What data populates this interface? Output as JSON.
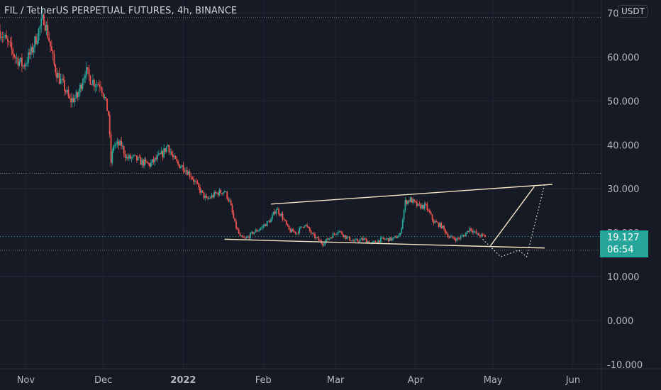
{
  "header": {
    "title": "FIL / TetherUS PERPETUAL FUTURES, 4h, BINANCE",
    "currency": "USDT"
  },
  "price_badge": {
    "price": "19.127",
    "countdown": "06:54"
  },
  "colors": {
    "background": "#161a25",
    "grid": "#222632",
    "axis_text": "#b2b5be",
    "up": "#26a69a",
    "down": "#ef5350",
    "drawing": "#f5e6c4",
    "badge": "#26a69a"
  },
  "chart_data": {
    "type": "candlestick",
    "title": "FIL / TetherUS PERPETUAL FUTURES, 4h, BINANCE",
    "y_tick_labels": [
      "70.000",
      "60.000",
      "50.000",
      "40.000",
      "30.000",
      "20.000",
      "10.000",
      "0.000",
      "-10.000"
    ],
    "y_ticks": [
      70,
      60,
      50,
      40,
      30,
      20,
      10,
      0,
      -10
    ],
    "ylim": [
      -11,
      73
    ],
    "x_tick_labels": [
      "Nov",
      "Dec",
      "2022",
      "Feb",
      "Mar",
      "Apr",
      "May",
      "Jun"
    ],
    "x_ticks": [
      "2021-11-01",
      "2021-12-01",
      "2022-01-01",
      "2022-02-01",
      "2022-03-01",
      "2022-04-01",
      "2022-05-01",
      "2022-06-01"
    ],
    "xlim": [
      "2021-10-22",
      "2022-06-12"
    ],
    "horizontal_levels": [
      69.0,
      33.5,
      19.127,
      16.0
    ],
    "last_price": 19.127,
    "close_series": {
      "name": "",
      "points": [
        [
          "2021-10-22",
          66
        ],
        [
          "2021-10-25",
          63
        ],
        [
          "2021-10-28",
          60
        ],
        [
          "2021-10-31",
          58
        ],
        [
          "2021-11-03",
          61
        ],
        [
          "2021-11-06",
          66
        ],
        [
          "2021-11-08",
          69
        ],
        [
          "2021-11-10",
          64
        ],
        [
          "2021-11-12",
          58
        ],
        [
          "2021-11-14",
          55
        ],
        [
          "2021-11-16",
          53
        ],
        [
          "2021-11-18",
          50
        ],
        [
          "2021-11-21",
          51
        ],
        [
          "2021-11-24",
          57
        ],
        [
          "2021-11-26",
          55
        ],
        [
          "2021-11-28",
          54
        ],
        [
          "2021-11-30",
          54
        ],
        [
          "2021-12-03",
          47
        ],
        [
          "2021-12-04",
          36
        ],
        [
          "2021-12-05",
          40
        ],
        [
          "2021-12-08",
          40
        ],
        [
          "2021-12-10",
          37
        ],
        [
          "2021-12-13",
          37
        ],
        [
          "2021-12-16",
          36
        ],
        [
          "2021-12-19",
          35.5
        ],
        [
          "2021-12-22",
          37
        ],
        [
          "2021-12-24",
          38
        ],
        [
          "2021-12-26",
          40
        ],
        [
          "2021-12-28",
          37
        ],
        [
          "2021-12-30",
          35.5
        ],
        [
          "2022-01-01",
          35
        ],
        [
          "2022-01-04",
          33
        ],
        [
          "2022-01-07",
          30
        ],
        [
          "2022-01-10",
          27.5
        ],
        [
          "2022-01-14",
          29
        ],
        [
          "2022-01-17",
          29.5
        ],
        [
          "2022-01-19",
          27
        ],
        [
          "2022-01-21",
          22
        ],
        [
          "2022-01-23",
          19
        ],
        [
          "2022-01-25",
          18.5
        ],
        [
          "2022-01-28",
          20
        ],
        [
          "2022-01-31",
          21
        ],
        [
          "2022-02-02",
          22
        ],
        [
          "2022-02-04",
          23
        ],
        [
          "2022-02-06",
          25.5
        ],
        [
          "2022-02-08",
          24
        ],
        [
          "2022-02-11",
          20.5
        ],
        [
          "2022-02-14",
          20
        ],
        [
          "2022-02-17",
          22
        ],
        [
          "2022-02-20",
          19.5
        ],
        [
          "2022-02-24",
          17.5
        ],
        [
          "2022-02-27",
          19
        ],
        [
          "2022-03-02",
          20.5
        ],
        [
          "2022-03-05",
          19
        ],
        [
          "2022-03-08",
          18
        ],
        [
          "2022-03-12",
          18.5
        ],
        [
          "2022-03-15",
          17.5
        ],
        [
          "2022-03-19",
          18.5
        ],
        [
          "2022-03-23",
          18.5
        ],
        [
          "2022-03-26",
          19.5
        ],
        [
          "2022-03-28",
          27
        ],
        [
          "2022-03-30",
          27.5
        ],
        [
          "2022-04-02",
          26
        ],
        [
          "2022-04-05",
          26
        ],
        [
          "2022-04-08",
          22.5
        ],
        [
          "2022-04-11",
          21.5
        ],
        [
          "2022-04-14",
          19
        ],
        [
          "2022-04-17",
          18.5
        ],
        [
          "2022-04-20",
          19.5
        ],
        [
          "2022-04-22",
          21
        ],
        [
          "2022-04-25",
          19.5
        ],
        [
          "2022-04-28",
          19.13
        ]
      ]
    },
    "annotations": [
      {
        "type": "trendline",
        "name": "upper channel line",
        "from": [
          "2022-02-04",
          26.5
        ],
        "to": [
          "2022-05-24",
          31
        ]
      },
      {
        "type": "trendline",
        "name": "lower channel line",
        "from": [
          "2022-01-17",
          18.5
        ],
        "to": [
          "2022-05-21",
          16.5
        ]
      },
      {
        "type": "trendline",
        "name": "projection solid up",
        "from": [
          "2022-04-30",
          17
        ],
        "to": [
          "2022-05-17",
          30.5
        ]
      },
      {
        "type": "dotted-path",
        "name": "projection dotted",
        "points": [
          [
            "2022-04-27",
            18.5
          ],
          [
            "2022-05-04",
            14.5
          ],
          [
            "2022-05-11",
            16
          ],
          [
            "2022-05-14",
            14.5
          ],
          [
            "2022-05-21",
            31
          ]
        ]
      }
    ]
  }
}
